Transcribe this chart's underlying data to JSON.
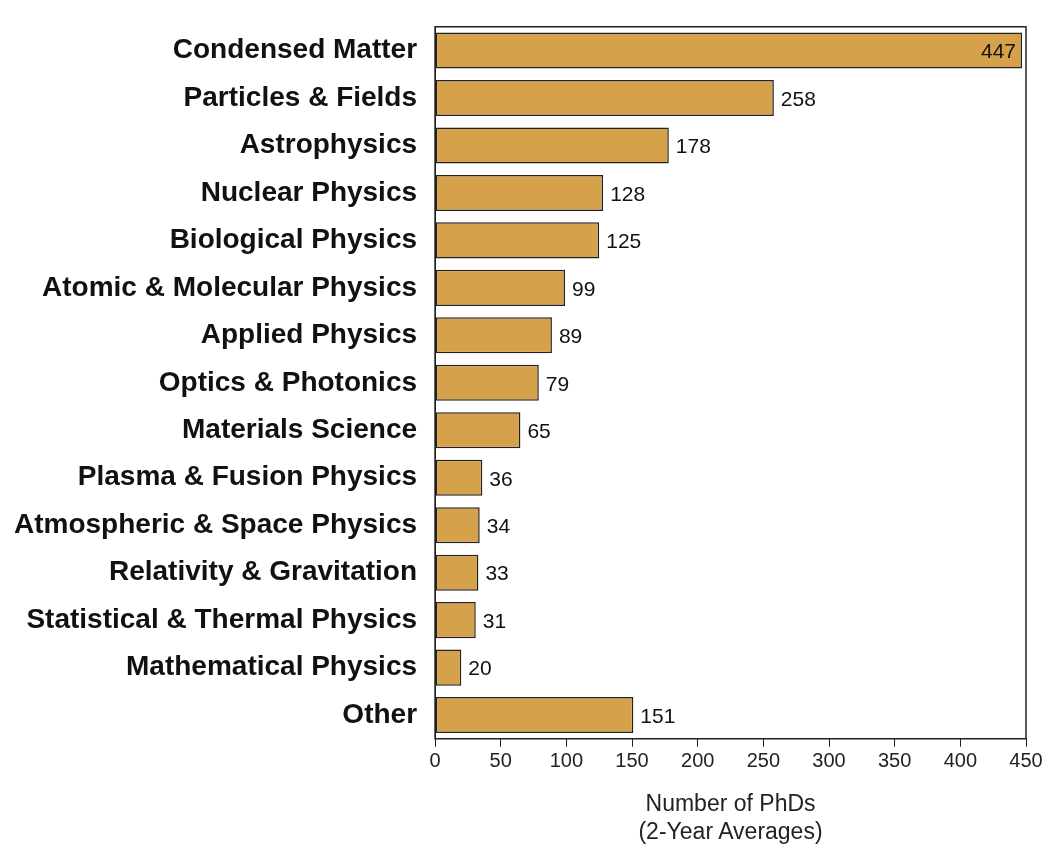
{
  "chart_data": {
    "type": "bar",
    "orientation": "horizontal",
    "xlabel": "Number of PhDs\n(2-Year Averages)",
    "categories": [
      "Condensed Matter",
      "Particles & Fields",
      "Astrophysics",
      "Nuclear Physics",
      "Biological Physics",
      "Atomic & Molecular Physics",
      "Applied Physics",
      "Optics & Photonics",
      "Materials Science",
      "Plasma & Fusion Physics",
      "Atmospheric & Space Physics",
      "Relativity & Gravitation",
      "Statistical & Thermal Physics",
      "Mathematical Physics",
      "Other"
    ],
    "values": [
      447,
      258,
      178,
      128,
      125,
      99,
      89,
      79,
      65,
      36,
      34,
      33,
      31,
      20,
      151
    ],
    "color": "#d6a14b",
    "xlim": [
      0,
      450
    ],
    "xticks": [
      0,
      50,
      100,
      150,
      200,
      250,
      300,
      350,
      400,
      450
    ],
    "grid": false,
    "legend": false,
    "data_labels": true
  }
}
